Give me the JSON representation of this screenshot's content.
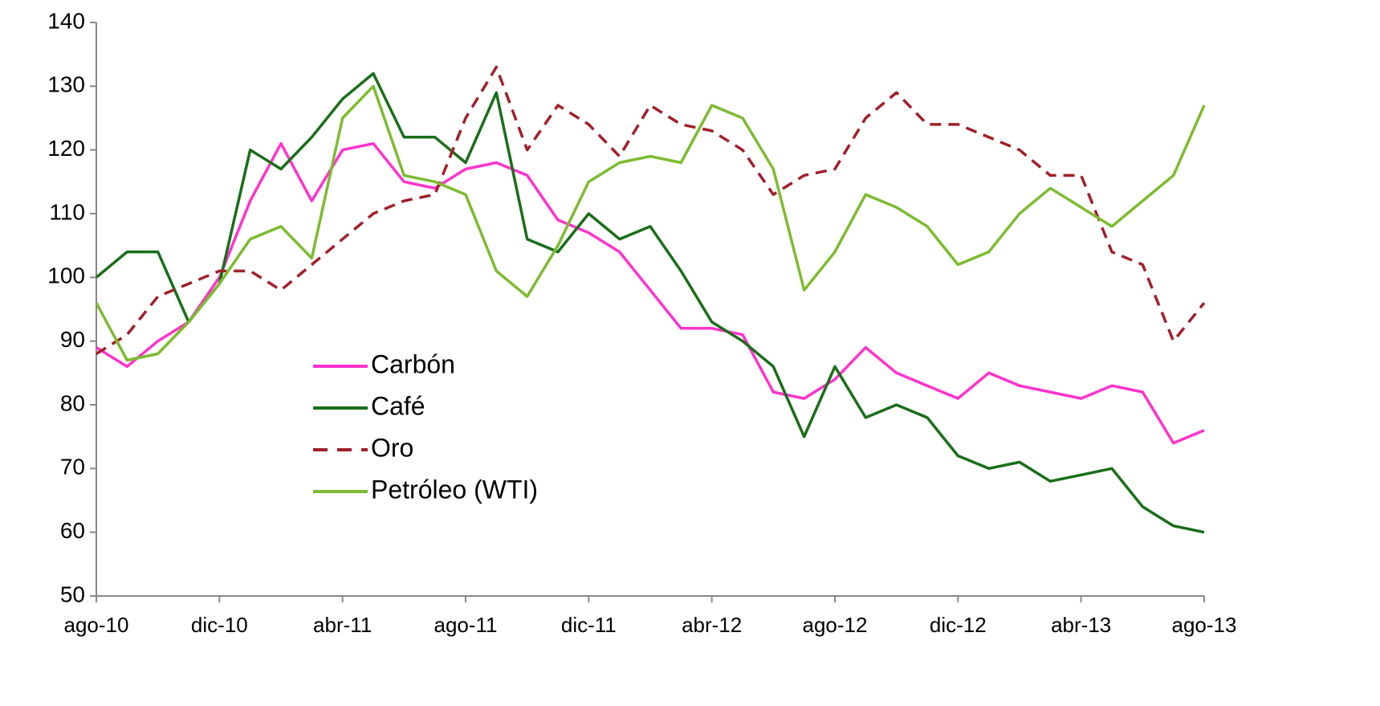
{
  "chart_data": {
    "type": "line",
    "categories": [
      "ago-10",
      null,
      null,
      null,
      "dic-10",
      null,
      null,
      null,
      "abr-11",
      null,
      null,
      null,
      "ago-11",
      null,
      null,
      null,
      "dic-11",
      null,
      null,
      null,
      "abr-12",
      null,
      null,
      null,
      "ago-12",
      null,
      null,
      null,
      "dic-12",
      null,
      null,
      null,
      "abr-13",
      null,
      null,
      null,
      "ago-13"
    ],
    "series": [
      {
        "name": "Carbón",
        "color": "#ff33cc",
        "dashed": false,
        "values": [
          89,
          86,
          90,
          93,
          100,
          112,
          121,
          112,
          120,
          121,
          115,
          114,
          117,
          118,
          116,
          109,
          107,
          104,
          98,
          92,
          92,
          91,
          82,
          81,
          84,
          89,
          85,
          83,
          81,
          85,
          83,
          82,
          81,
          83,
          82,
          74,
          76
        ]
      },
      {
        "name": "Café",
        "color": "#1a6e1a",
        "dashed": false,
        "values": [
          100,
          104,
          104,
          93,
          99,
          120,
          117,
          122,
          128,
          132,
          122,
          122,
          118,
          129,
          106,
          104,
          110,
          106,
          108,
          101,
          93,
          90,
          86,
          75,
          86,
          78,
          80,
          78,
          72,
          70,
          71,
          68,
          69,
          70,
          64,
          61,
          60
        ]
      },
      {
        "name": "Oro",
        "color": "#a0202a",
        "dashed": true,
        "values": [
          88,
          91,
          97,
          99,
          101,
          101,
          98,
          102,
          106,
          110,
          112,
          113,
          125,
          133,
          120,
          127,
          124,
          119,
          127,
          124,
          123,
          120,
          113,
          116,
          117,
          125,
          129,
          124,
          124,
          122,
          120,
          116,
          116,
          104,
          102,
          90,
          96
        ]
      },
      {
        "name": "Petróleo (WTI)",
        "color": "#7dbb30",
        "dashed": false,
        "values": [
          96,
          87,
          88,
          93,
          99,
          106,
          108,
          103,
          125,
          130,
          116,
          115,
          113,
          101,
          97,
          105,
          115,
          118,
          119,
          118,
          127,
          125,
          117,
          98,
          104,
          113,
          111,
          108,
          102,
          104,
          110,
          114,
          111,
          108,
          112,
          116,
          127
        ]
      }
    ],
    "ylim": [
      50,
      140
    ],
    "yticks": [
      50,
      60,
      70,
      80,
      90,
      100,
      110,
      120,
      130,
      140
    ],
    "grid": false,
    "legend_position": "left"
  }
}
